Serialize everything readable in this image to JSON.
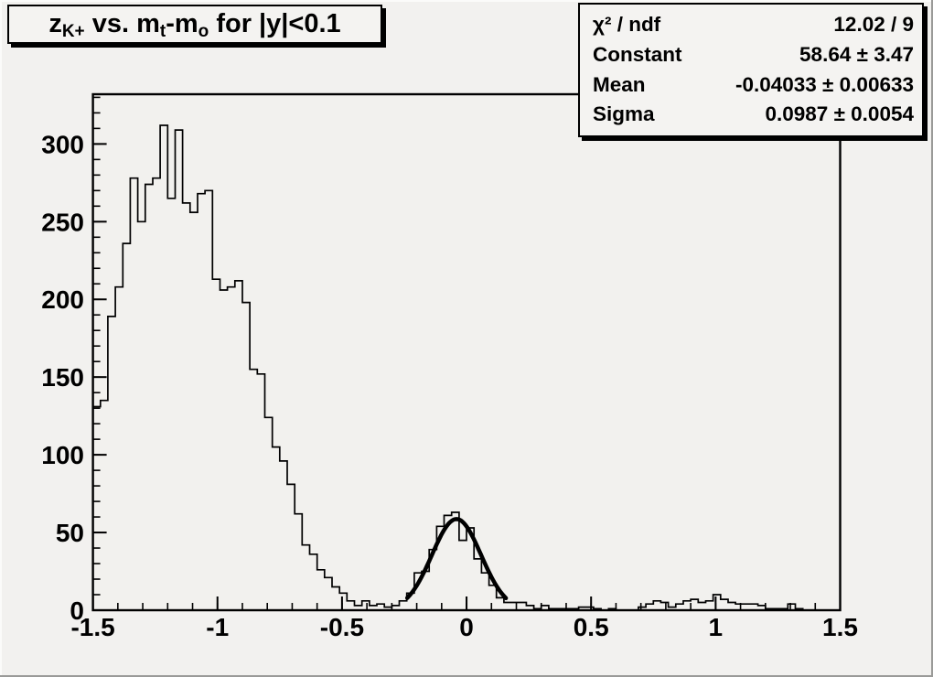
{
  "canvas": {
    "bg": "#f2f1ef",
    "frame_bg": "#f2f1ee",
    "box_bg": "#f4f3f1",
    "line_color": "#000000"
  },
  "title": {
    "t1": "z",
    "s1": "K+",
    "t2": " vs. m",
    "s2": "t",
    "t3": "-m",
    "s3": "o",
    "t4": " for |y|<0.1"
  },
  "stats": {
    "rows": [
      {
        "label": "χ² / ndf",
        "value": "12.02 / 9"
      },
      {
        "label": "Constant",
        "value": "58.64 ± 3.47"
      },
      {
        "label": "Mean",
        "value": "-0.04033 ± 0.00633"
      },
      {
        "label": "Sigma",
        "value": "0.0987 ± 0.0054"
      }
    ]
  },
  "chart_data": {
    "type": "bar",
    "subtype": "step-histogram",
    "title": "z_{K+} vs. m_{t}-m_{o} for |y|<0.1",
    "xlabel": "",
    "ylabel": "",
    "x_min": -1.5,
    "x_max": 1.5,
    "n_bins": 100,
    "bin_width": 0.03,
    "y_min": 0,
    "y_max": 332,
    "grid": false,
    "x_major_ticks": [
      -1.5,
      -1,
      -0.5,
      0,
      0.5,
      1,
      1.5
    ],
    "x_tick_labels": [
      "-1.5",
      "-1",
      "-0.5",
      "0",
      "0.5",
      "1",
      "1.5"
    ],
    "x_minor_step": 0.1,
    "y_major_ticks": [
      0,
      50,
      100,
      150,
      200,
      250,
      300
    ],
    "y_tick_labels": [
      "0",
      "50",
      "100",
      "150",
      "200",
      "250",
      "300"
    ],
    "y_minor_step": 10,
    "values": [
      131,
      135,
      189,
      208,
      236,
      278,
      250,
      274,
      278,
      312,
      265,
      309,
      262,
      256,
      268,
      270,
      213,
      206,
      208,
      212,
      198,
      155,
      152,
      124,
      105,
      96,
      81,
      62,
      42,
      36,
      26,
      21,
      15,
      11,
      6,
      3,
      6,
      3,
      4,
      2,
      3,
      6,
      11,
      24,
      25,
      39,
      54,
      61,
      63,
      45,
      53,
      33,
      24,
      16,
      8,
      5,
      5,
      5,
      3,
      1,
      3,
      1,
      1,
      1,
      1,
      2,
      2,
      1,
      0,
      1,
      0,
      0,
      0,
      2,
      4,
      6,
      5,
      2,
      4,
      6,
      7,
      5,
      6,
      10,
      7,
      5,
      4,
      4,
      4,
      3,
      1,
      1,
      1,
      4,
      1,
      0,
      0,
      0,
      0,
      0
    ],
    "fit": {
      "type": "gaussian",
      "constant": 58.64,
      "constant_err": 3.47,
      "mean": -0.04033,
      "mean_err": 0.00633,
      "sigma": 0.0987,
      "sigma_err": 0.0054,
      "chi2": 12.02,
      "ndf": 9,
      "draw_range": [
        -0.238,
        0.158
      ]
    }
  }
}
